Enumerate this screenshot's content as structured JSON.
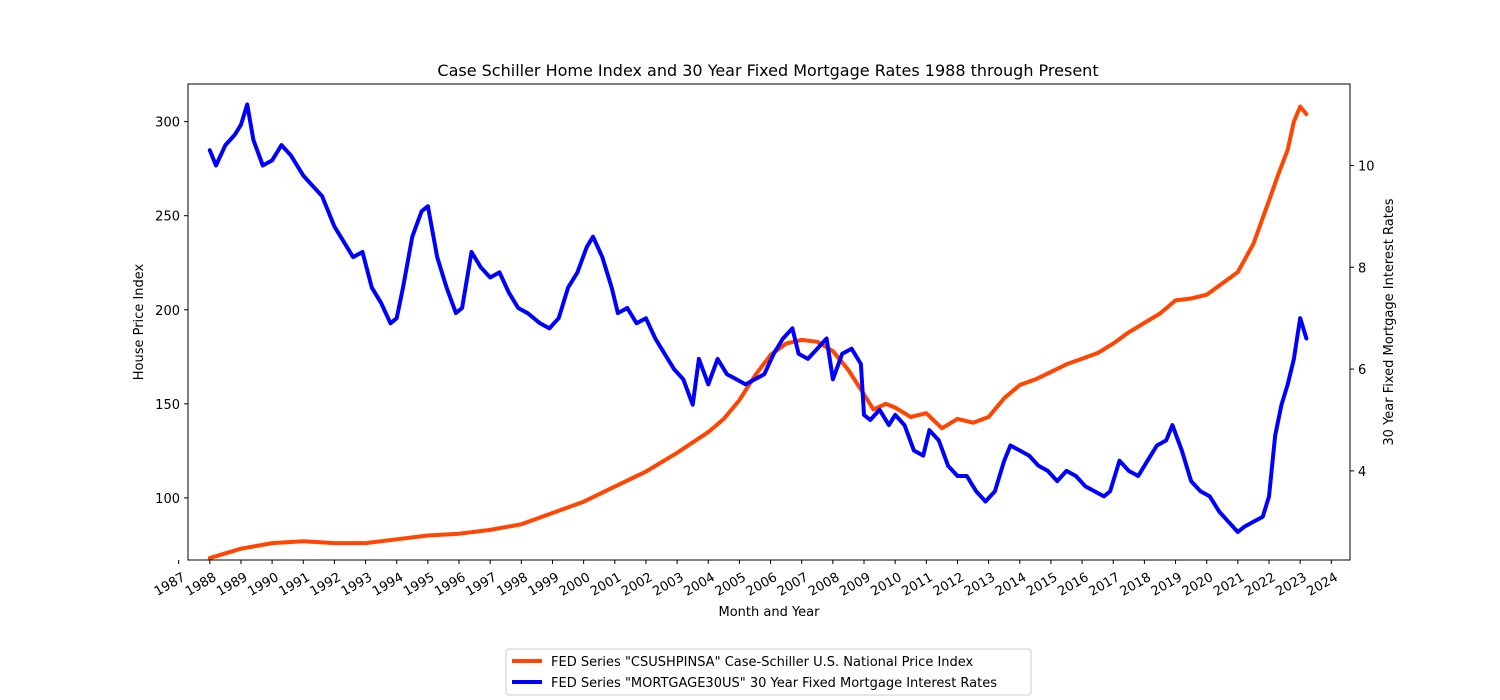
{
  "chart_data": {
    "type": "line",
    "title": "Case Schiller Home Index and 30 Year Fixed Mortgage Rates 1988 through Present",
    "xlabel": "Month and Year",
    "ylabel": "House Price Index",
    "y2label": "30 Year Fixed Mortgage Interest Rates",
    "xlim": [
      1987.3,
      2024.6
    ],
    "ylim": [
      67,
      320
    ],
    "y2lim": [
      2.25,
      11.6
    ],
    "x_ticks": [
      "1987",
      "1988",
      "1989",
      "1990",
      "1991",
      "1992",
      "1993",
      "1994",
      "1995",
      "1996",
      "1997",
      "1998",
      "1999",
      "2000",
      "2001",
      "2002",
      "2003",
      "2004",
      "2005",
      "2006",
      "2007",
      "2008",
      "2009",
      "2010",
      "2011",
      "2012",
      "2013",
      "2014",
      "2015",
      "2016",
      "2017",
      "2018",
      "2019",
      "2020",
      "2021",
      "2022",
      "2023",
      "2024"
    ],
    "y_ticks": [
      100,
      150,
      200,
      250,
      300
    ],
    "y2_ticks": [
      4,
      6,
      8,
      10
    ],
    "grid": false,
    "legend_position": "bottom-center",
    "series": [
      {
        "name": "FED Series \"CSUSHPINSA\" Case-Schiller U.S. National Price Index",
        "axis": "left",
        "color": "#ff4500",
        "x": [
          1988.0,
          1989.0,
          1990.0,
          1991.0,
          1992.0,
          1993.0,
          1994.0,
          1995.0,
          1996.0,
          1997.0,
          1998.0,
          1999.0,
          2000.0,
          2001.0,
          2002.0,
          2003.0,
          2004.0,
          2004.5,
          2005.0,
          2005.5,
          2006.0,
          2006.5,
          2007.0,
          2007.5,
          2008.0,
          2008.5,
          2009.0,
          2009.3,
          2009.7,
          2010.0,
          2010.5,
          2011.0,
          2011.5,
          2012.0,
          2012.5,
          2013.0,
          2013.5,
          2014.0,
          2014.5,
          2015.0,
          2015.5,
          2016.0,
          2016.5,
          2017.0,
          2017.5,
          2018.0,
          2018.5,
          2019.0,
          2019.5,
          2020.0,
          2020.5,
          2021.0,
          2021.5,
          2022.0,
          2022.3,
          2022.6,
          2022.8,
          2023.0,
          2023.2
        ],
        "values": [
          68,
          73,
          76,
          77,
          76,
          76,
          78,
          80,
          81,
          83,
          86,
          92,
          98,
          106,
          114,
          124,
          135,
          142,
          152,
          165,
          176,
          182,
          184,
          183,
          178,
          168,
          155,
          147,
          150,
          148,
          143,
          145,
          137,
          142,
          140,
          143,
          153,
          160,
          163,
          167,
          171,
          174,
          177,
          182,
          188,
          193,
          198,
          205,
          206,
          208,
          214,
          220,
          235,
          258,
          272,
          285,
          300,
          308,
          304
        ]
      },
      {
        "name": "FED Series \"MORTGAGE30US\" 30 Year Fixed Mortgage Interest Rates",
        "axis": "right",
        "color": "#0000ff",
        "x": [
          1988.0,
          1988.2,
          1988.5,
          1988.8,
          1989.0,
          1989.2,
          1989.4,
          1989.7,
          1990.0,
          1990.3,
          1990.6,
          1991.0,
          1991.3,
          1991.6,
          1992.0,
          1992.3,
          1992.6,
          1992.9,
          1993.2,
          1993.5,
          1993.8,
          1994.0,
          1994.2,
          1994.5,
          1994.8,
          1995.0,
          1995.3,
          1995.6,
          1995.9,
          1996.1,
          1996.4,
          1996.7,
          1997.0,
          1997.3,
          1997.6,
          1997.9,
          1998.2,
          1998.6,
          1998.9,
          1999.2,
          1999.5,
          1999.8,
          2000.1,
          2000.3,
          2000.6,
          2000.9,
          2001.1,
          2001.4,
          2001.7,
          2002.0,
          2002.3,
          2002.6,
          2002.9,
          2003.2,
          2003.5,
          2003.7,
          2004.0,
          2004.3,
          2004.6,
          2004.9,
          2005.2,
          2005.5,
          2005.8,
          2006.1,
          2006.4,
          2006.7,
          2006.9,
          2007.2,
          2007.5,
          2007.8,
          2008.0,
          2008.3,
          2008.6,
          2008.9,
          2009.0,
          2009.2,
          2009.5,
          2009.8,
          2010.0,
          2010.3,
          2010.6,
          2010.9,
          2011.1,
          2011.4,
          2011.7,
          2012.0,
          2012.3,
          2012.6,
          2012.9,
          2013.2,
          2013.5,
          2013.7,
          2014.0,
          2014.3,
          2014.6,
          2014.9,
          2015.2,
          2015.5,
          2015.8,
          2016.1,
          2016.4,
          2016.7,
          2016.9,
          2017.2,
          2017.5,
          2017.8,
          2018.1,
          2018.4,
          2018.7,
          2018.9,
          2019.2,
          2019.5,
          2019.8,
          2020.1,
          2020.4,
          2020.7,
          2021.0,
          2021.2,
          2021.5,
          2021.8,
          2022.0,
          2022.2,
          2022.4,
          2022.6,
          2022.8,
          2022.9,
          2023.0,
          2023.2
        ],
        "values": [
          10.3,
          10.0,
          10.4,
          10.6,
          10.8,
          11.2,
          10.5,
          10.0,
          10.1,
          10.4,
          10.2,
          9.8,
          9.6,
          9.4,
          8.8,
          8.5,
          8.2,
          8.3,
          7.6,
          7.3,
          6.9,
          7.0,
          7.6,
          8.6,
          9.1,
          9.2,
          8.2,
          7.6,
          7.1,
          7.2,
          8.3,
          8.0,
          7.8,
          7.9,
          7.5,
          7.2,
          7.1,
          6.9,
          6.8,
          7.0,
          7.6,
          7.9,
          8.4,
          8.6,
          8.2,
          7.6,
          7.1,
          7.2,
          6.9,
          7.0,
          6.6,
          6.3,
          6.0,
          5.8,
          5.3,
          6.2,
          5.7,
          6.2,
          5.9,
          5.8,
          5.7,
          5.8,
          5.9,
          6.3,
          6.6,
          6.8,
          6.3,
          6.2,
          6.4,
          6.6,
          5.8,
          6.3,
          6.4,
          6.1,
          5.1,
          5.0,
          5.2,
          4.9,
          5.1,
          4.9,
          4.4,
          4.3,
          4.8,
          4.6,
          4.1,
          3.9,
          3.9,
          3.6,
          3.4,
          3.6,
          4.2,
          4.5,
          4.4,
          4.3,
          4.1,
          4.0,
          3.8,
          4.0,
          3.9,
          3.7,
          3.6,
          3.5,
          3.6,
          4.2,
          4.0,
          3.9,
          4.2,
          4.5,
          4.6,
          4.9,
          4.4,
          3.8,
          3.6,
          3.5,
          3.2,
          3.0,
          2.8,
          2.9,
          3.0,
          3.1,
          3.5,
          4.7,
          5.3,
          5.7,
          6.2,
          6.6,
          7.0,
          6.6
        ]
      }
    ]
  }
}
